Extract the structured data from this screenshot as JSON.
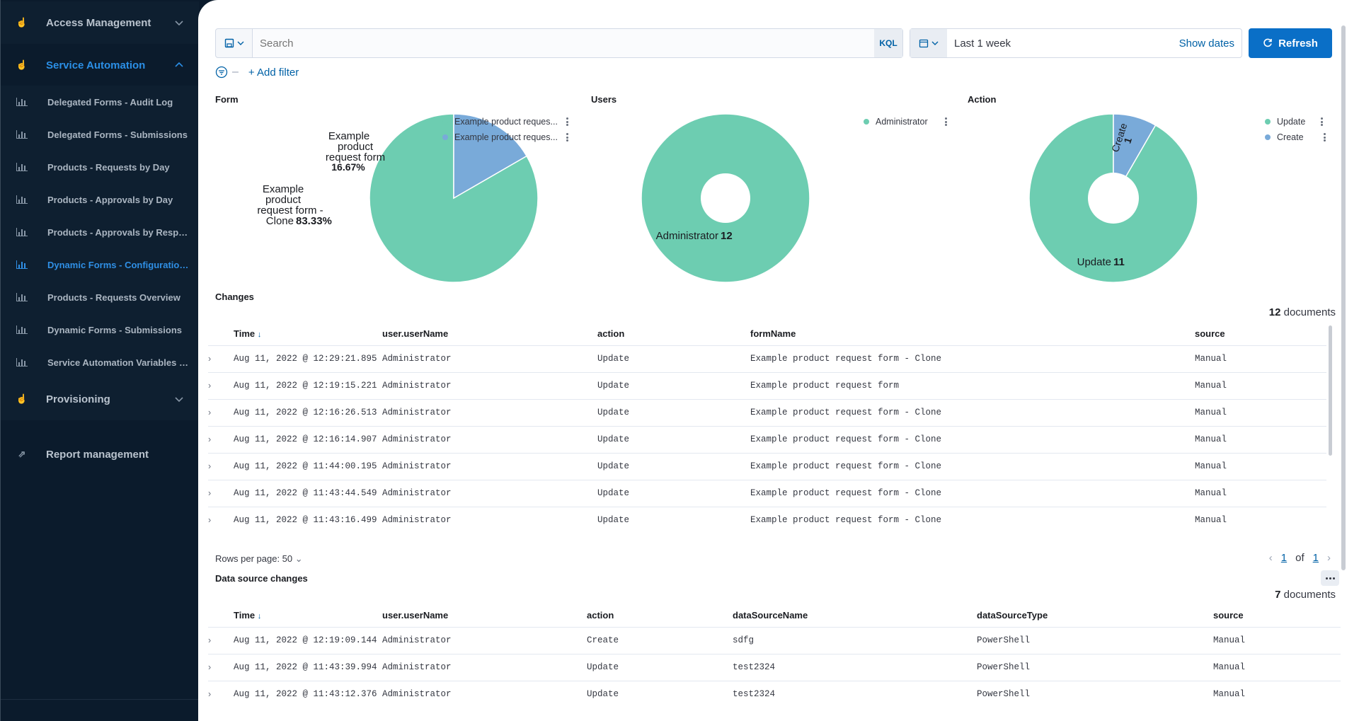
{
  "sidebar": {
    "access_management": "Access Management",
    "service_automation": "Service Automation",
    "items": [
      "Delegated Forms - Audit Log",
      "Delegated Forms - Submissions",
      "Products - Requests by Day",
      "Products - Approvals by Day",
      "Products - Approvals by Respo...",
      "Dynamic Forms - Configuration...",
      "Products - Requests Overview",
      "Dynamic Forms - Submissions",
      "Service Automation Variables -..."
    ],
    "provisioning": "Provisioning",
    "report_management": "Report management"
  },
  "query": {
    "placeholder": "Search",
    "kql": "KQL"
  },
  "date": {
    "range": "Last 1 week",
    "show_dates": "Show dates"
  },
  "refresh": "Refresh",
  "add_filter": "+ Add filter",
  "panels": {
    "form": {
      "title": "Form",
      "legend": [
        "Example product reques...",
        "Example product reques..."
      ],
      "slice_large_label": [
        "Example",
        "product",
        "request form -",
        "Clone"
      ],
      "slice_large_pct": "83.33%",
      "slice_small_label": [
        "Example",
        "product",
        "request form"
      ],
      "slice_small_pct": "16.67%"
    },
    "users": {
      "title": "Users",
      "legend": [
        "Administrator"
      ],
      "label": "Administrator",
      "value": "12"
    },
    "action": {
      "title": "Action",
      "legend": [
        "Update",
        "Create"
      ],
      "update_label": "Update",
      "update_value": "11",
      "create_label": "Create",
      "create_value": "1"
    }
  },
  "colors": {
    "green": "#6dcdb1",
    "blue": "#79aad9"
  },
  "chart_data": [
    {
      "type": "pie",
      "title": "Form",
      "categories": [
        "Example product request form - Clone",
        "Example product request form"
      ],
      "values": [
        83.33,
        16.67
      ]
    },
    {
      "type": "pie",
      "title": "Users",
      "categories": [
        "Administrator"
      ],
      "values": [
        12
      ]
    },
    {
      "type": "pie",
      "title": "Action",
      "categories": [
        "Update",
        "Create"
      ],
      "values": [
        11,
        1
      ]
    }
  ],
  "changes": {
    "title": "Changes",
    "count": "12",
    "count_label": "documents",
    "headers": [
      "Time",
      "user.userName",
      "action",
      "formName",
      "source"
    ],
    "rows": [
      [
        "Aug 11, 2022 @ 12:29:21.895",
        "Administrator",
        "Update",
        "Example product request form - Clone",
        "Manual"
      ],
      [
        "Aug 11, 2022 @ 12:19:15.221",
        "Administrator",
        "Update",
        "Example product request form",
        "Manual"
      ],
      [
        "Aug 11, 2022 @ 12:16:26.513",
        "Administrator",
        "Update",
        "Example product request form - Clone",
        "Manual"
      ],
      [
        "Aug 11, 2022 @ 12:16:14.907",
        "Administrator",
        "Update",
        "Example product request form - Clone",
        "Manual"
      ],
      [
        "Aug 11, 2022 @ 11:44:00.195",
        "Administrator",
        "Update",
        "Example product request form - Clone",
        "Manual"
      ],
      [
        "Aug 11, 2022 @ 11:43:44.549",
        "Administrator",
        "Update",
        "Example product request form - Clone",
        "Manual"
      ],
      [
        "Aug 11, 2022 @ 11:43:16.499",
        "Administrator",
        "Update",
        "Example product request form - Clone",
        "Manual"
      ]
    ],
    "rows_per_page": "Rows per page: 50",
    "page": "1",
    "of": "of",
    "total_pages": "1"
  },
  "ds_changes": {
    "title": "Data source changes",
    "count": "7",
    "count_label": "documents",
    "headers": [
      "Time",
      "user.userName",
      "action",
      "dataSourceName",
      "dataSourceType",
      "source"
    ],
    "rows": [
      [
        "Aug 11, 2022 @ 12:19:09.144",
        "Administrator",
        "Create",
        "sdfg",
        "PowerShell",
        "Manual"
      ],
      [
        "Aug 11, 2022 @ 11:43:39.994",
        "Administrator",
        "Update",
        "test2324",
        "PowerShell",
        "Manual"
      ],
      [
        "Aug 11, 2022 @ 11:43:12.376",
        "Administrator",
        "Update",
        "test2324",
        "PowerShell",
        "Manual"
      ]
    ]
  }
}
